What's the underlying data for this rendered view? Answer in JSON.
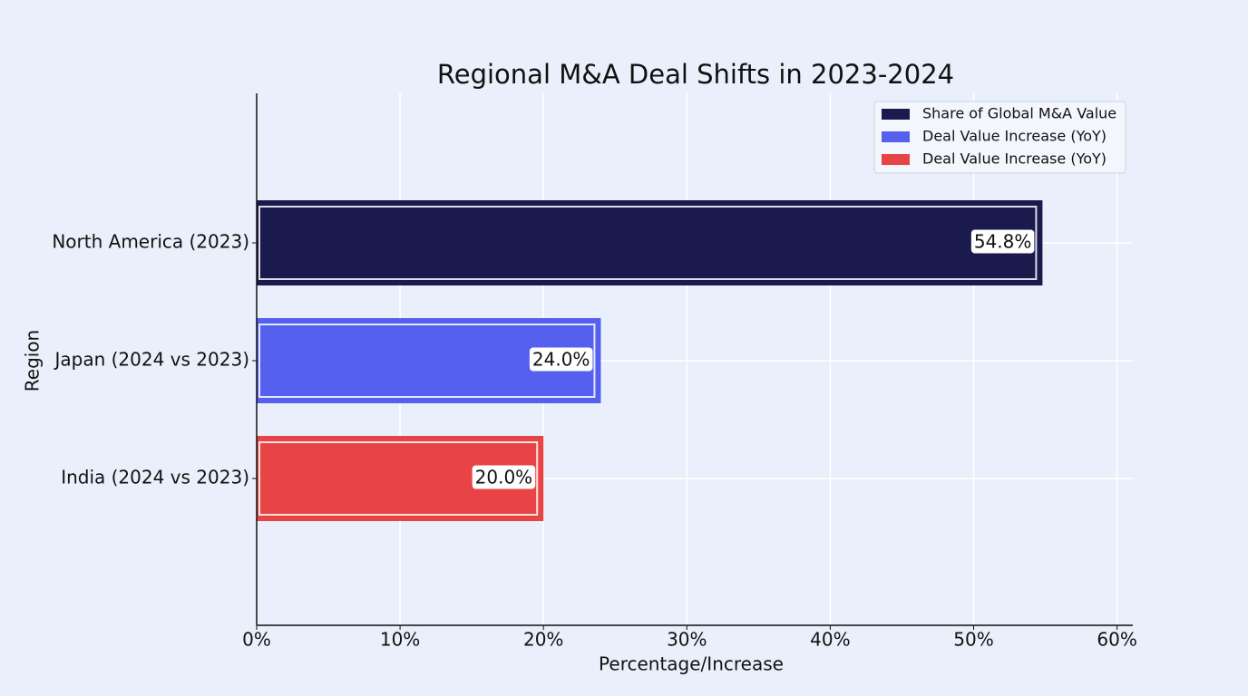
{
  "chart_data": {
    "type": "hbar",
    "title": "Regional M&A Deal Shifts in 2023-2024",
    "x_label": "Percentage/Increase",
    "y_label": "Region",
    "categories": [
      "North America (2023)",
      "Japan (2024 vs 2023)",
      "India (2024 vs 2023)"
    ],
    "values": [
      54.8,
      24.0,
      20.0
    ],
    "value_labels": [
      "54.8%",
      "24.0%",
      "20.0%"
    ],
    "colors": [
      "#1b1a4f",
      "#5560ef",
      "#e84445"
    ],
    "legend_labels": [
      "Share of Global M&A Value",
      "Deal Value Increase (YoY)",
      "Deal Value Increase (YoY)"
    ],
    "legend_position": "upper right",
    "xlim": [
      0,
      61.1
    ],
    "xticks": [
      {
        "value": 0,
        "label": "0%"
      },
      {
        "value": 10,
        "label": "10%"
      },
      {
        "value": 20,
        "label": "20%"
      },
      {
        "value": 30,
        "label": "30%"
      },
      {
        "value": 40,
        "label": "40%"
      },
      {
        "value": 50,
        "label": "50%"
      },
      {
        "value": 60,
        "label": "60%"
      }
    ],
    "grid": true
  }
}
